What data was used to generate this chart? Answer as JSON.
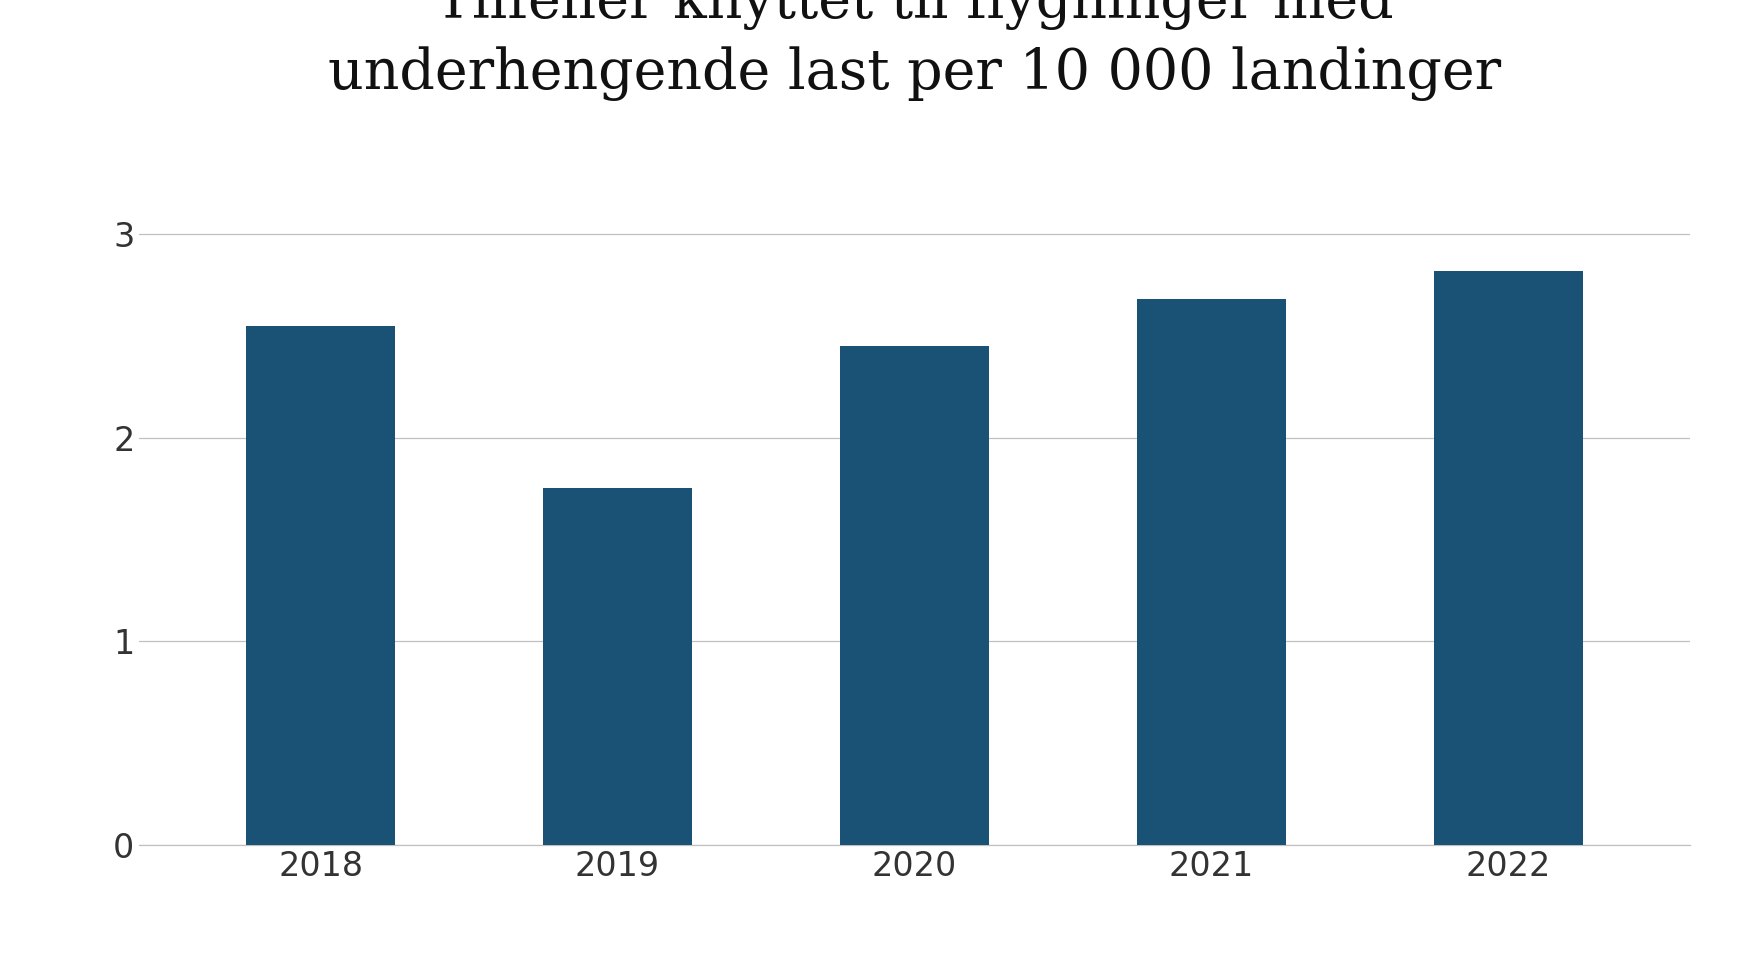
{
  "categories": [
    "2018",
    "2019",
    "2020",
    "2021",
    "2022"
  ],
  "values": [
    2.55,
    1.75,
    2.45,
    2.68,
    2.82
  ],
  "bar_color": "#1a5276",
  "title_line1": "Tilfeller knyttet til flygninger med",
  "title_line2": "underhengende last per 10 000 landinger",
  "ylim": [
    0,
    3.3
  ],
  "yticks": [
    0,
    1,
    2,
    3
  ],
  "background_color": "#ffffff",
  "title_fontsize": 40,
  "tick_fontsize": 24,
  "bar_width": 0.5,
  "grid_color": "#c0c0c0",
  "title_color": "#111111"
}
